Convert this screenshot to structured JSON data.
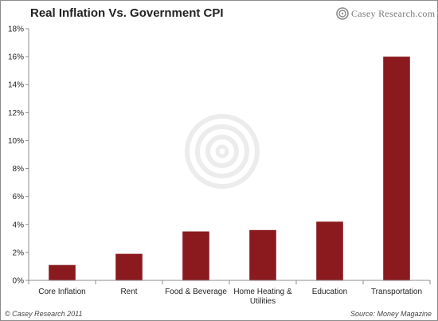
{
  "header": {
    "title": "Real Inflation Vs. Government CPI",
    "logo_text": "Casey Research.com",
    "logo_icon": "casey-research-logo-icon"
  },
  "footer": {
    "copyright": "© Casey Research 2011",
    "source": "Source: Money Magazine"
  },
  "colors": {
    "bar": "#8b1a1f",
    "grid": "#d9d9d9",
    "axis": "#8c8c8c"
  },
  "chart_data": {
    "type": "bar",
    "title": "Real Inflation Vs. Government CPI",
    "xlabel": "",
    "ylabel": "",
    "categories": [
      [
        "Core Inflation"
      ],
      [
        "Rent"
      ],
      [
        "Food & Beverage"
      ],
      [
        "Home Heating &",
        "Utilities"
      ],
      [
        "Education"
      ],
      [
        "Transportation"
      ]
    ],
    "values": [
      1.1,
      1.9,
      3.5,
      3.6,
      4.2,
      16.0
    ],
    "ylim": [
      0,
      18
    ],
    "yticks": [
      0,
      2,
      4,
      6,
      8,
      10,
      12,
      14,
      16,
      18
    ],
    "ytick_labels": [
      "0%",
      "2%",
      "4%",
      "6%",
      "8%",
      "10%",
      "12%",
      "14%",
      "16%",
      "18%"
    ],
    "grid": false,
    "legend": "none"
  }
}
